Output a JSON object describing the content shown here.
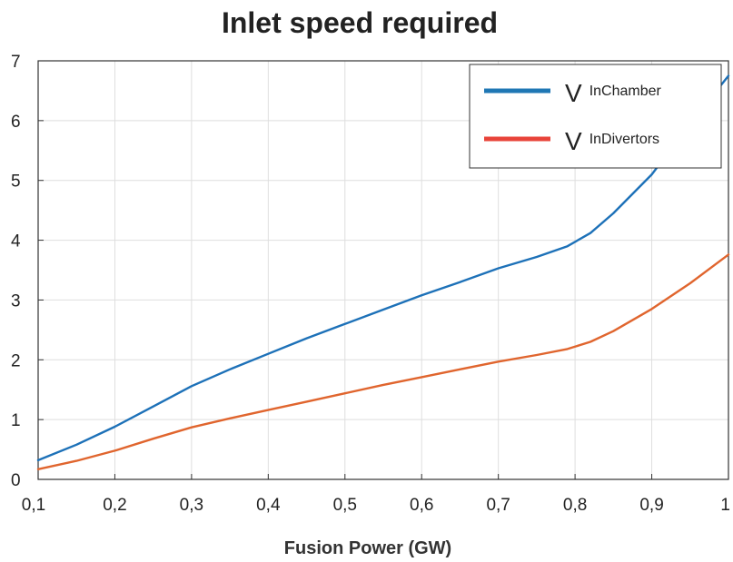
{
  "chart_data": {
    "type": "line",
    "title": "Inlet speed required",
    "xlabel": "Fusion Power (GW)",
    "ylabel": "",
    "xlim": [
      0.1,
      1.0
    ],
    "ylim": [
      0,
      7
    ],
    "x_ticks": [
      0.1,
      0.2,
      0.3,
      0.4,
      0.5,
      0.6,
      0.7,
      0.8,
      0.9,
      1.0
    ],
    "x_tick_labels": [
      "0,1",
      "0,2",
      "0,3",
      "0,4",
      "0,5",
      "0,6",
      "0,7",
      "0,8",
      "0,9",
      "1"
    ],
    "y_ticks": [
      0,
      1,
      2,
      3,
      4,
      5,
      6,
      7
    ],
    "y_tick_labels": [
      "0",
      "1",
      "2",
      "3",
      "4",
      "5",
      "6",
      "7"
    ],
    "grid": true,
    "legend_position": "top-right",
    "series": [
      {
        "name": "V InChamber",
        "symbol": "V",
        "subscript": "InChamber",
        "color": "#1f77b4",
        "x": [
          0.1,
          0.15,
          0.2,
          0.25,
          0.3,
          0.35,
          0.4,
          0.45,
          0.5,
          0.55,
          0.6,
          0.65,
          0.7,
          0.75,
          0.79,
          0.82,
          0.85,
          0.9,
          0.95,
          1.0
        ],
        "y": [
          0.32,
          0.58,
          0.88,
          1.22,
          1.56,
          1.84,
          2.1,
          2.36,
          2.6,
          2.84,
          3.08,
          3.3,
          3.53,
          3.72,
          3.9,
          4.12,
          4.45,
          5.1,
          5.95,
          6.75
        ]
      },
      {
        "name": "V InDivertors",
        "symbol": "V",
        "subscript": "InDivertors",
        "color": "#e8443a",
        "x": [
          0.1,
          0.15,
          0.2,
          0.25,
          0.3,
          0.35,
          0.4,
          0.45,
          0.5,
          0.55,
          0.6,
          0.65,
          0.7,
          0.75,
          0.79,
          0.82,
          0.85,
          0.9,
          0.95,
          1.0
        ],
        "y": [
          0.17,
          0.31,
          0.48,
          0.68,
          0.87,
          1.02,
          1.16,
          1.3,
          1.44,
          1.58,
          1.71,
          1.84,
          1.97,
          2.08,
          2.18,
          2.3,
          2.48,
          2.85,
          3.28,
          3.76
        ]
      }
    ]
  },
  "colors": {
    "series_1_line": "#1d71b8",
    "series_2_line": "#e0652e",
    "legend_series_2": "#e8443a",
    "grid": "#dedede",
    "axis": "#333333"
  }
}
